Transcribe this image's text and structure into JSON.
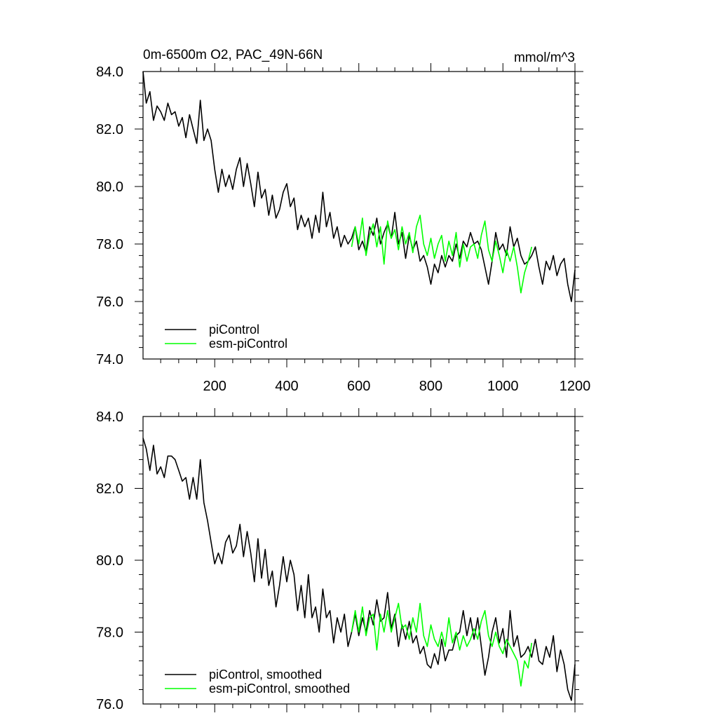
{
  "chart_data": [
    {
      "type": "line",
      "title": "0m-6500m O2, PAC_49N-66N",
      "units": "mmol/m^3",
      "xlim": [
        1,
        1200
      ],
      "ylim": [
        74.0,
        84.0
      ],
      "x_ticks": [
        "200",
        "400",
        "600",
        "800",
        "1000",
        "1200"
      ],
      "y_ticks": [
        "74.0",
        "76.0",
        "78.0",
        "80.0",
        "82.0",
        "84.0"
      ],
      "legend_position": "bottom-left",
      "grid": false,
      "series": [
        {
          "name": "piControl",
          "color": "#000000",
          "x": [
            1,
            10,
            20,
            30,
            40,
            50,
            60,
            70,
            80,
            90,
            100,
            110,
            120,
            130,
            140,
            150,
            160,
            170,
            180,
            190,
            200,
            210,
            220,
            230,
            240,
            250,
            260,
            270,
            280,
            290,
            300,
            310,
            320,
            330,
            340,
            350,
            360,
            370,
            380,
            390,
            400,
            410,
            420,
            430,
            440,
            450,
            460,
            470,
            480,
            490,
            500,
            510,
            520,
            530,
            540,
            550,
            560,
            570,
            580,
            590,
            600,
            610,
            620,
            630,
            640,
            650,
            660,
            670,
            680,
            690,
            700,
            710,
            720,
            730,
            740,
            750,
            760,
            770,
            780,
            790,
            800,
            810,
            820,
            830,
            840,
            850,
            860,
            870,
            880,
            890,
            900,
            910,
            920,
            930,
            940,
            950,
            960,
            970,
            980,
            990,
            1000,
            1010,
            1020,
            1030,
            1040,
            1050,
            1060,
            1070,
            1080,
            1090,
            1100,
            1110,
            1120,
            1130,
            1140,
            1150,
            1160,
            1170,
            1180,
            1190,
            1200
          ],
          "y": [
            84.0,
            82.9,
            83.3,
            82.3,
            82.8,
            82.6,
            82.3,
            82.9,
            82.5,
            82.6,
            82.1,
            82.4,
            81.7,
            82.5,
            82.0,
            81.5,
            83.0,
            81.6,
            82.0,
            81.6,
            80.6,
            79.8,
            80.6,
            80.0,
            80.4,
            79.9,
            80.6,
            81.0,
            80.0,
            80.8,
            80.1,
            79.3,
            80.5,
            79.6,
            79.9,
            79.0,
            79.7,
            78.9,
            79.2,
            79.8,
            80.1,
            79.3,
            79.6,
            78.5,
            79.0,
            78.6,
            78.9,
            78.2,
            79.0,
            78.4,
            79.8,
            78.6,
            79.1,
            78.2,
            78.6,
            77.9,
            78.3,
            78.0,
            78.2,
            78.6,
            77.8,
            78.1,
            77.7,
            78.6,
            78.3,
            78.9,
            78.0,
            78.4,
            78.7,
            78.2,
            79.1,
            78.0,
            78.4,
            77.5,
            78.3,
            77.8,
            78.1,
            77.4,
            77.6,
            77.2,
            76.6,
            77.3,
            77.0,
            77.6,
            77.2,
            77.6,
            77.4,
            78.0,
            77.5,
            78.1,
            77.9,
            78.4,
            78.0,
            78.1,
            77.8,
            77.2,
            76.6,
            77.4,
            78.4,
            77.8,
            78.0,
            77.6,
            78.6,
            77.9,
            78.2,
            77.6,
            77.3,
            77.4,
            77.6,
            77.9,
            77.2,
            76.6,
            77.4,
            77.1,
            77.6,
            76.9,
            77.3,
            77.5,
            76.6,
            76.0,
            77.1
          ]
        },
        {
          "name": "esm-piControl",
          "color": "#00ff00",
          "x": [
            580,
            590,
            600,
            610,
            620,
            630,
            640,
            650,
            660,
            670,
            680,
            690,
            700,
            710,
            720,
            730,
            740,
            750,
            760,
            770,
            780,
            790,
            800,
            810,
            820,
            830,
            840,
            850,
            860,
            870,
            880,
            890,
            900,
            910,
            920,
            930,
            940,
            950,
            960,
            970,
            980,
            990,
            1000,
            1010,
            1020,
            1030,
            1040,
            1050,
            1060,
            1070,
            1080
          ],
          "y": [
            77.9,
            78.6,
            78.0,
            78.9,
            77.6,
            78.3,
            78.7,
            77.9,
            78.6,
            77.3,
            78.8,
            78.2,
            78.5,
            77.8,
            78.6,
            78.0,
            78.4,
            77.7,
            78.6,
            79.0,
            78.0,
            77.6,
            78.2,
            77.5,
            78.0,
            78.3,
            77.4,
            78.1,
            77.6,
            78.4,
            77.2,
            78.0,
            77.4,
            77.9,
            78.0,
            77.5,
            78.3,
            78.8,
            77.8,
            77.4,
            78.1,
            77.6,
            77.0,
            77.8,
            77.4,
            77.9,
            77.2,
            76.3,
            77.0,
            77.4,
            77.9
          ]
        }
      ]
    },
    {
      "type": "line",
      "xlim": [
        1,
        1200
      ],
      "ylim": [
        76.0,
        84.0
      ],
      "y_ticks": [
        "76.0",
        "78.0",
        "80.0",
        "82.0",
        "84.0"
      ],
      "legend_position": "bottom-left",
      "grid": false,
      "series": [
        {
          "name": "piControl, smoothed",
          "color": "#000000",
          "x": [
            1,
            10,
            20,
            30,
            40,
            50,
            60,
            70,
            80,
            90,
            100,
            110,
            120,
            130,
            140,
            150,
            160,
            170,
            180,
            190,
            200,
            210,
            220,
            230,
            240,
            250,
            260,
            270,
            280,
            290,
            300,
            310,
            320,
            330,
            340,
            350,
            360,
            370,
            380,
            390,
            400,
            410,
            420,
            430,
            440,
            450,
            460,
            470,
            480,
            490,
            500,
            510,
            520,
            530,
            540,
            550,
            560,
            570,
            580,
            590,
            600,
            610,
            620,
            630,
            640,
            650,
            660,
            670,
            680,
            690,
            700,
            710,
            720,
            730,
            740,
            750,
            760,
            770,
            780,
            790,
            800,
            810,
            820,
            830,
            840,
            850,
            860,
            870,
            880,
            890,
            900,
            910,
            920,
            930,
            940,
            950,
            960,
            970,
            980,
            990,
            1000,
            1010,
            1020,
            1030,
            1040,
            1050,
            1060,
            1070,
            1080,
            1090,
            1100,
            1110,
            1120,
            1130,
            1140,
            1150,
            1160,
            1170,
            1180,
            1190,
            1200
          ],
          "y": [
            83.4,
            83.1,
            82.5,
            83.2,
            82.4,
            82.6,
            82.3,
            82.9,
            82.9,
            82.8,
            82.5,
            82.2,
            82.3,
            81.7,
            82.3,
            81.7,
            82.8,
            81.6,
            81.1,
            80.5,
            79.9,
            80.2,
            79.9,
            80.5,
            80.7,
            80.2,
            80.4,
            81.0,
            80.1,
            80.8,
            80.2,
            79.4,
            80.6,
            79.5,
            80.3,
            79.3,
            79.7,
            78.7,
            79.3,
            80.1,
            79.4,
            80.0,
            79.6,
            78.6,
            79.3,
            78.4,
            79.6,
            78.4,
            78.7,
            78.0,
            79.2,
            78.4,
            78.6,
            77.7,
            78.4,
            78.0,
            78.5,
            77.6,
            78.0,
            78.5,
            77.9,
            78.4,
            78.0,
            78.6,
            78.2,
            78.9,
            78.3,
            78.4,
            79.1,
            78.1,
            78.5,
            77.6,
            78.2,
            77.8,
            78.3,
            77.7,
            77.9,
            77.4,
            77.6,
            77.1,
            77.0,
            77.4,
            77.1,
            77.8,
            77.2,
            77.5,
            77.5,
            77.9,
            78.0,
            78.6,
            77.9,
            78.4,
            77.8,
            78.4,
            77.6,
            76.8,
            77.3,
            78.0,
            78.4,
            77.7,
            78.1,
            77.3,
            78.6,
            77.6,
            77.9,
            77.3,
            77.4,
            77.6,
            77.3,
            77.8,
            77.2,
            77.1,
            77.6,
            77.3,
            77.9,
            76.9,
            77.5,
            77.1,
            76.4,
            76.1,
            77.1
          ]
        },
        {
          "name": "esm-piControl, smoothed",
          "color": "#00ff00",
          "x": [
            580,
            590,
            600,
            610,
            620,
            630,
            640,
            650,
            660,
            670,
            680,
            690,
            700,
            710,
            720,
            730,
            740,
            750,
            760,
            770,
            780,
            790,
            800,
            810,
            820,
            830,
            840,
            850,
            860,
            870,
            880,
            890,
            900,
            910,
            920,
            930,
            940,
            950,
            960,
            970,
            980,
            990,
            1000,
            1010,
            1020,
            1030,
            1040,
            1050,
            1060,
            1070,
            1080
          ],
          "y": [
            78.0,
            78.6,
            78.0,
            78.7,
            77.9,
            78.4,
            78.5,
            77.5,
            78.5,
            78.0,
            78.6,
            78.0,
            78.4,
            78.8,
            78.1,
            78.2,
            77.8,
            78.4,
            78.0,
            78.8,
            77.9,
            77.6,
            78.2,
            77.8,
            77.6,
            78.0,
            77.6,
            78.4,
            77.7,
            78.0,
            77.5,
            77.9,
            77.6,
            77.8,
            78.1,
            77.8,
            78.3,
            78.6,
            77.9,
            77.6,
            78.0,
            77.6,
            77.4,
            77.8,
            77.6,
            77.4,
            77.2,
            76.5,
            77.2,
            77.0,
            77.7
          ]
        }
      ]
    }
  ]
}
